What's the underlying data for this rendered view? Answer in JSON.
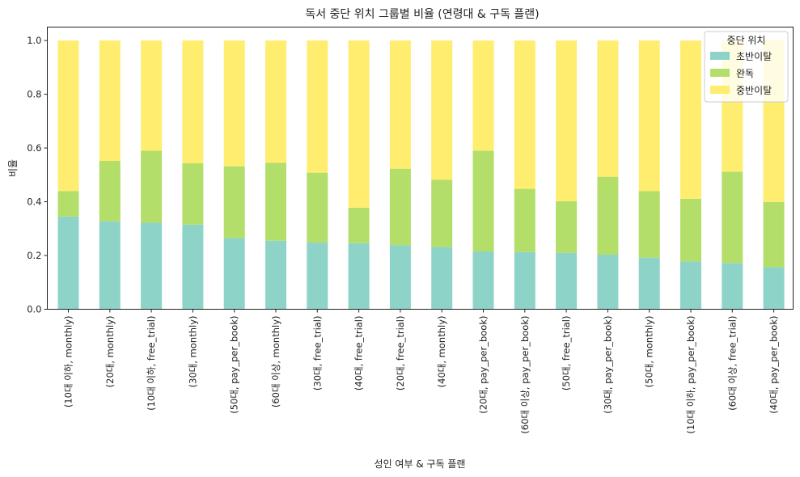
{
  "chart_data": {
    "type": "bar",
    "stacked": true,
    "title": "독서 중단 위치 그룹별 비율 (연령대 & 구독 플랜)",
    "xlabel": "성인 여부 & 구독 플랜",
    "ylabel": "비율",
    "ylim": [
      0,
      1.05
    ],
    "yticks": [
      "0.0",
      "0.2",
      "0.4",
      "0.6",
      "0.8",
      "1.0"
    ],
    "legend": {
      "title": "중단 위치",
      "placement": "top-right"
    },
    "categories": [
      "(10대 이하, monthly)",
      "(20대, monthly)",
      "(10대 이하, free_trial)",
      "(30대, monthly)",
      "(50대, pay_per_book)",
      "(60대 이상, monthly)",
      "(30대, free_trial)",
      "(40대, free_trial)",
      "(20대, free_trial)",
      "(40대, monthly)",
      "(20대, pay_per_book)",
      "(60대 이상, pay_per_book)",
      "(50대, free_trial)",
      "(30대, pay_per_book)",
      "(50대, monthly)",
      "(10대 이하, pay_per_book)",
      "(60대 이상, free_trial)",
      "(40대, pay_per_book)"
    ],
    "series": [
      {
        "name": "초반이탈",
        "color": "#8dd3c7",
        "values": [
          0.345,
          0.327,
          0.322,
          0.315,
          0.265,
          0.255,
          0.248,
          0.246,
          0.238,
          0.232,
          0.215,
          0.213,
          0.21,
          0.203,
          0.192,
          0.178,
          0.172,
          0.157
        ]
      },
      {
        "name": "완독",
        "color": "#b3de69",
        "values": [
          0.095,
          0.225,
          0.268,
          0.228,
          0.267,
          0.29,
          0.26,
          0.132,
          0.285,
          0.25,
          0.375,
          0.235,
          0.192,
          0.29,
          0.248,
          0.233,
          0.34,
          0.242
        ]
      },
      {
        "name": "중반이탈",
        "color": "#ffed6f",
        "values": [
          0.56,
          0.448,
          0.41,
          0.457,
          0.468,
          0.455,
          0.492,
          0.622,
          0.477,
          0.518,
          0.41,
          0.552,
          0.598,
          0.507,
          0.56,
          0.589,
          0.488,
          0.601
        ]
      }
    ]
  }
}
